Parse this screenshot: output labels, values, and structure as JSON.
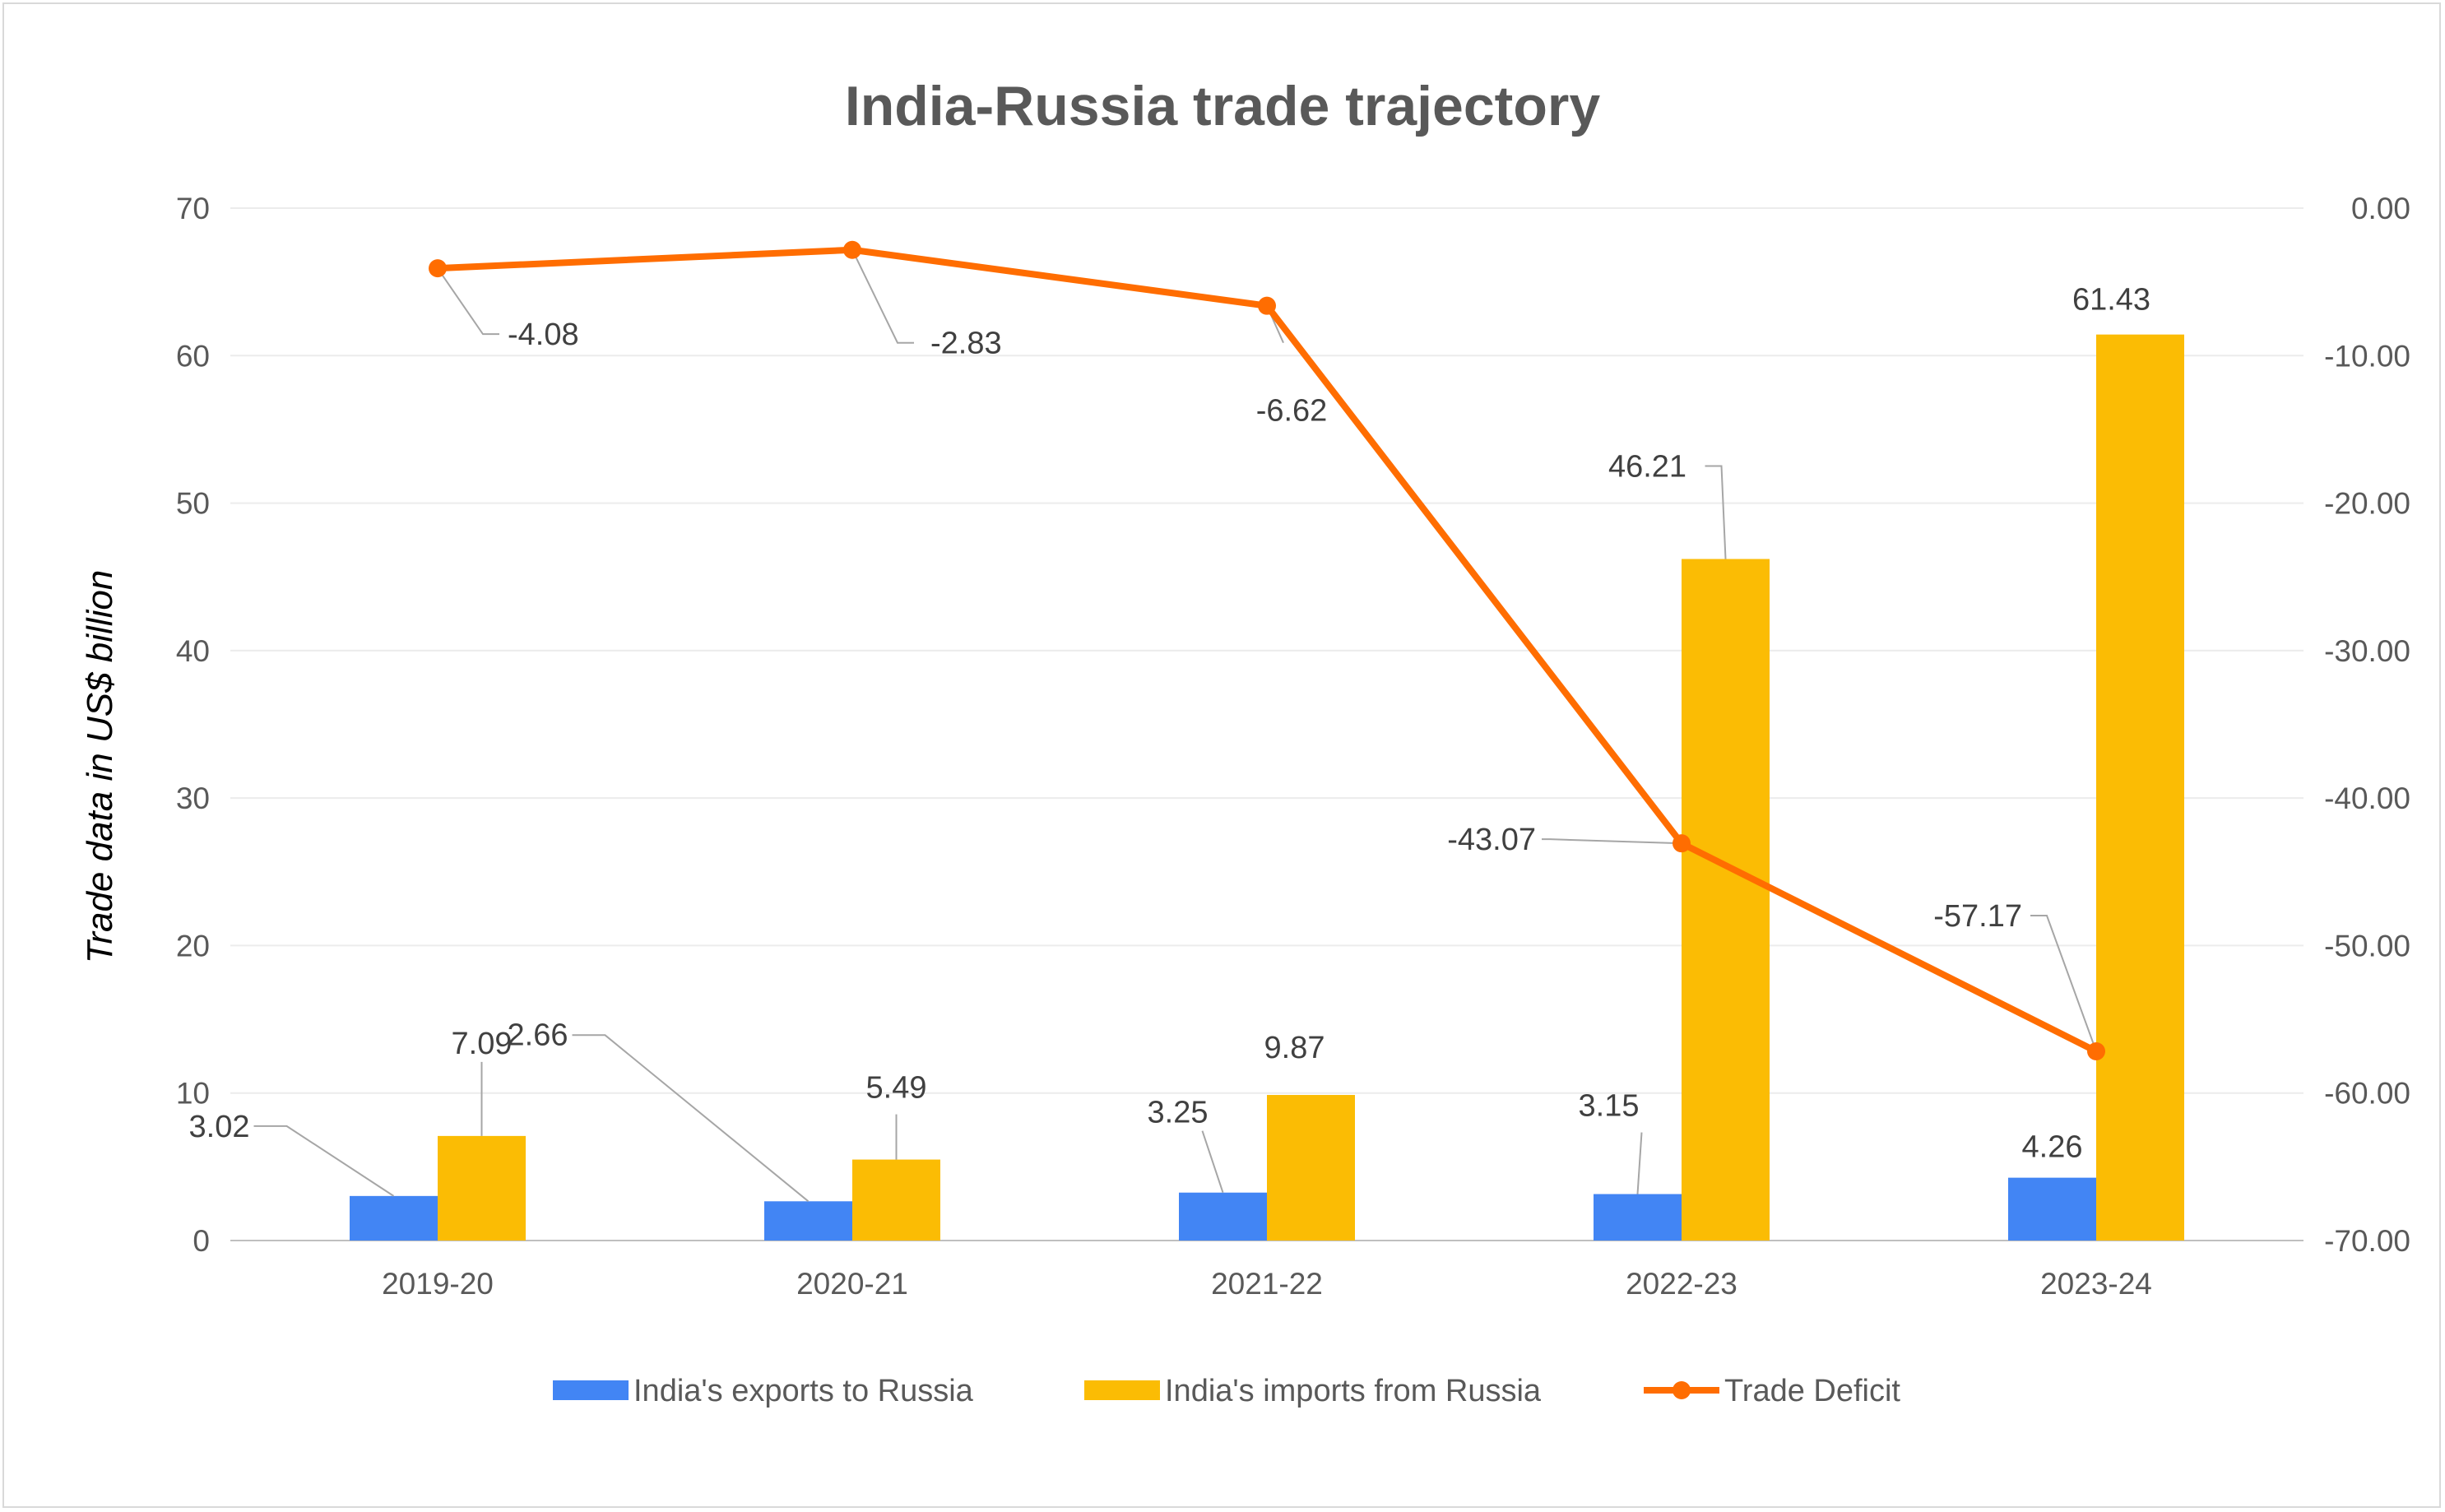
{
  "chart_data": {
    "type": "bar",
    "title": "India-Russia trade trajectory",
    "ylabel": "Trade data in US$ billion",
    "categories": [
      "2019-20",
      "2020-21",
      "2021-22",
      "2022-23",
      "2023-24"
    ],
    "series": [
      {
        "name": "India's exports to Russia",
        "type": "bar",
        "axis": "left",
        "color": "#4285f4",
        "values": [
          3.02,
          2.66,
          3.25,
          3.15,
          4.26
        ],
        "labels": [
          "3.02",
          "2.66",
          "3.25",
          "3.15",
          "4.26"
        ]
      },
      {
        "name": "India's imports from Russia",
        "type": "bar",
        "axis": "left",
        "color": "#fbbc04",
        "values": [
          7.09,
          5.49,
          9.87,
          46.21,
          61.43
        ],
        "labels": [
          "7.09",
          "5.49",
          "9.87",
          "46.21",
          "61.43"
        ]
      },
      {
        "name": "Trade Deficit",
        "type": "line",
        "axis": "right",
        "color": "#ff6d01",
        "values": [
          -4.08,
          -2.83,
          -6.62,
          -43.07,
          -57.17
        ],
        "labels": [
          "-4.08",
          "-2.83",
          "-6.62",
          "-43.07",
          "-57.17"
        ]
      }
    ],
    "y_left": {
      "ylim": [
        0,
        70
      ],
      "ticks": [
        "0",
        "10",
        "20",
        "30",
        "40",
        "50",
        "60",
        "70"
      ]
    },
    "y_right": {
      "ylim": [
        -70,
        0
      ],
      "ticks": [
        "-70.00",
        "-60.00",
        "-50.00",
        "-40.00",
        "-30.00",
        "-20.00",
        "-10.00",
        "0.00"
      ]
    },
    "grid": true,
    "legend": "bottom"
  }
}
